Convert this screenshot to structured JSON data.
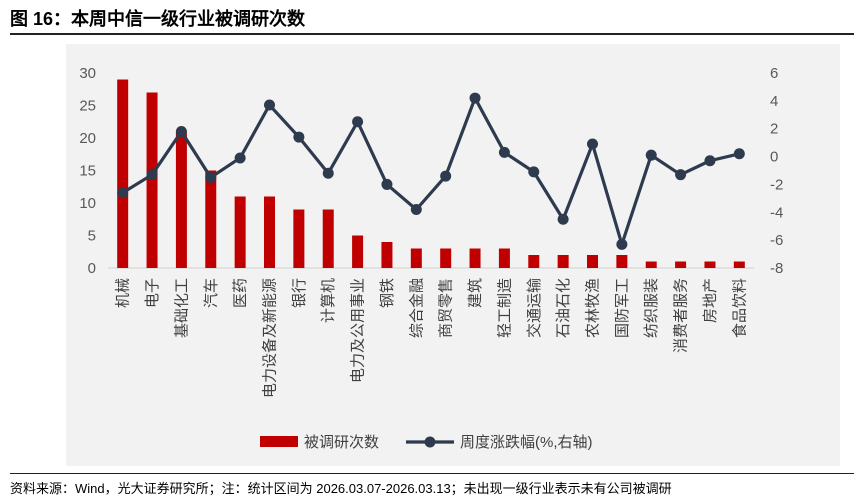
{
  "figure": {
    "title": "图 16：本周中信一级行业被调研次数",
    "source": "资料来源：Wind，光大证券研究所；注：统计区间为 2026.03.07-2026.03.13；未出现一级行业表示未有公司被调研"
  },
  "colors": {
    "bar": "#c00000",
    "line": "#2e3a4e",
    "background": "#f2f2f2"
  },
  "chart_data": {
    "type": "bar+line",
    "categories": [
      "机械",
      "电子",
      "基础化工",
      "汽车",
      "医药",
      "电力设备及新能源",
      "银行",
      "计算机",
      "电力及公用事业",
      "钢铁",
      "综合金融",
      "商贸零售",
      "建筑",
      "轻工制造",
      "交通运输",
      "石油石化",
      "农林牧渔",
      "国防军工",
      "纺织服装",
      "消费者服务",
      "房地产",
      "食品饮料"
    ],
    "series": [
      {
        "name": "被调研次数",
        "type": "bar",
        "axis": "left",
        "values": [
          29,
          27,
          21,
          15,
          11,
          11,
          9,
          9,
          5,
          4,
          3,
          3,
          3,
          3,
          2,
          2,
          2,
          2,
          1,
          1,
          1,
          1
        ]
      },
      {
        "name": "周度涨跌幅(%,右轴)",
        "type": "line",
        "axis": "right",
        "values": [
          -2.6,
          -1.3,
          1.8,
          -1.5,
          -0.1,
          3.7,
          1.4,
          -1.2,
          2.5,
          -2.0,
          -3.8,
          -1.4,
          4.2,
          0.3,
          -1.1,
          -4.5,
          0.9,
          -6.3,
          0.1,
          -1.3,
          -0.3,
          0.2
        ]
      }
    ],
    "y_left": {
      "min": 0,
      "max": 30,
      "ticks": [
        0,
        5,
        10,
        15,
        20,
        25,
        30
      ]
    },
    "y_right": {
      "min": -8,
      "max": 6,
      "ticks": [
        6,
        4,
        2,
        0,
        -2,
        -4,
        -6,
        -8
      ]
    },
    "grid": false,
    "legend_position": "bottom"
  }
}
